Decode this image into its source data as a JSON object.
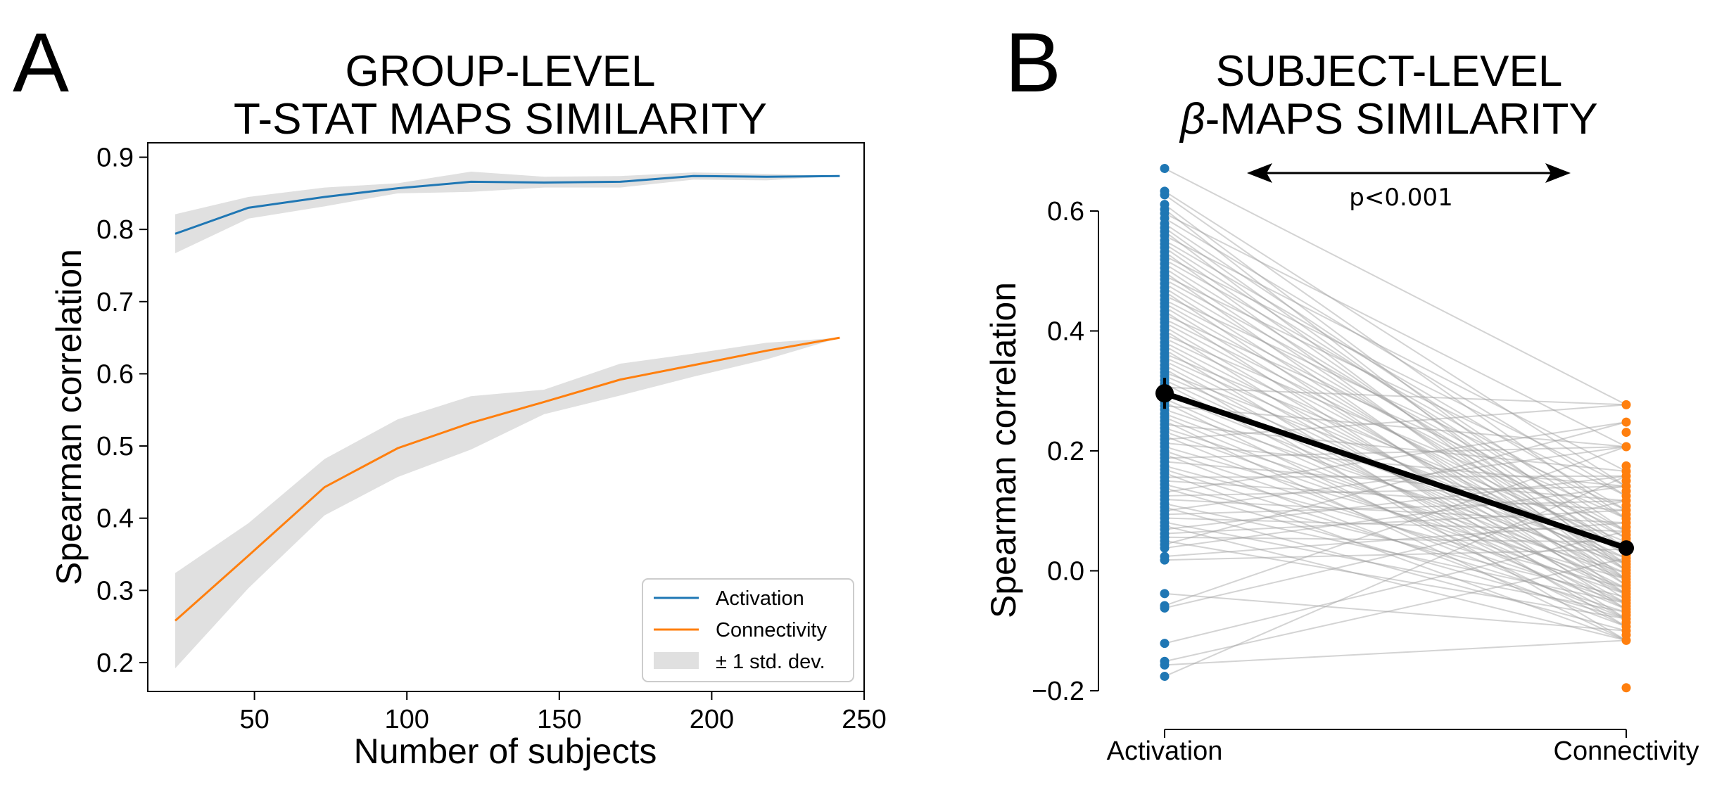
{
  "figure": {
    "panel_a_letter": "A",
    "panel_b_letter": "B",
    "panel_a_title": [
      "GROUP-LEVEL",
      "T-STAT MAPS SIMILARITY"
    ],
    "panel_b_title_line1": "SUBJECT-LEVEL",
    "panel_b_title_beta": "β",
    "panel_b_title_rest": "-MAPS SIMILARITY"
  },
  "colors": {
    "activation": "#1f77b4",
    "connectivity": "#ff7f0e",
    "band": "#e0e0e0",
    "pair_lines": "#9e9e9e",
    "mean": "#000000"
  },
  "chart_data": [
    {
      "type": "line",
      "title": "GROUP-LEVEL T-STAT MAPS SIMILARITY",
      "xlabel": "Number of subjects",
      "ylabel": "Spearman correlation",
      "xlim": [
        15,
        250
      ],
      "ylim": [
        0.16,
        0.92
      ],
      "xticks": [
        50,
        100,
        150,
        200,
        250
      ],
      "yticks": [
        0.2,
        0.3,
        0.4,
        0.5,
        0.6,
        0.7,
        0.8,
        0.9
      ],
      "grid": false,
      "legend_position": "lower-right",
      "x": [
        24,
        48,
        73,
        97,
        121,
        145,
        170,
        194,
        218,
        242
      ],
      "series": [
        {
          "name": "Activation",
          "values": [
            0.794,
            0.83,
            0.845,
            0.857,
            0.866,
            0.865,
            0.866,
            0.874,
            0.873,
            0.874
          ],
          "lower": [
            0.767,
            0.815,
            0.832,
            0.85,
            0.852,
            0.858,
            0.858,
            0.869,
            0.868,
            0.874
          ],
          "upper": [
            0.821,
            0.845,
            0.858,
            0.864,
            0.88,
            0.873,
            0.874,
            0.879,
            0.877,
            0.874
          ]
        },
        {
          "name": "Connectivity",
          "values": [
            0.258,
            0.348,
            0.443,
            0.497,
            0.532,
            0.561,
            0.592,
            0.612,
            0.632,
            0.65
          ],
          "lower": [
            0.192,
            0.303,
            0.404,
            0.457,
            0.495,
            0.544,
            0.57,
            0.596,
            0.62,
            0.65
          ],
          "upper": [
            0.324,
            0.393,
            0.482,
            0.537,
            0.569,
            0.578,
            0.614,
            0.628,
            0.643,
            0.65
          ]
        }
      ],
      "band_label": "± 1 std. dev."
    },
    {
      "type": "scatter",
      "title": "SUBJECT-LEVEL β-MAPS SIMILARITY",
      "xlabel": "",
      "ylabel": "Spearman correlation",
      "categories": [
        "Activation",
        "Connectivity"
      ],
      "ylim": [
        -0.2,
        0.6
      ],
      "yticks": [
        -0.2,
        0.0,
        0.2,
        0.4,
        0.6
      ],
      "ytick_labels": [
        "−0.2",
        "0.0",
        "0.2",
        "0.4",
        "0.6"
      ],
      "grid": false,
      "annotation": "p<0.001",
      "series": [
        {
          "name": "Activation",
          "values": [
            0.671,
            0.633,
            0.627,
            0.611,
            0.603,
            0.596,
            0.588,
            0.579,
            0.572,
            0.566,
            0.559,
            0.551,
            0.545,
            0.539,
            0.532,
            0.525,
            0.519,
            0.512,
            0.505,
            0.498,
            0.492,
            0.486,
            0.479,
            0.472,
            0.466,
            0.459,
            0.452,
            0.446,
            0.44,
            0.433,
            0.427,
            0.42,
            0.414,
            0.407,
            0.401,
            0.394,
            0.388,
            0.381,
            0.375,
            0.369,
            0.362,
            0.356,
            0.35,
            0.343,
            0.337,
            0.331,
            0.325,
            0.318,
            0.312,
            0.306,
            0.3,
            0.294,
            0.287,
            0.281,
            0.275,
            0.269,
            0.262,
            0.256,
            0.25,
            0.244,
            0.238,
            0.232,
            0.225,
            0.219,
            0.213,
            0.207,
            0.2,
            0.194,
            0.188,
            0.182,
            0.175,
            0.169,
            0.163,
            0.156,
            0.15,
            0.144,
            0.138,
            0.131,
            0.125,
            0.119,
            0.112,
            0.106,
            0.1,
            0.094,
            0.088,
            0.081,
            0.075,
            0.069,
            0.062,
            0.056,
            0.05,
            0.044,
            0.038,
            0.024,
            0.018,
            -0.038,
            -0.058,
            -0.062,
            -0.121,
            -0.151,
            -0.157,
            -0.176
          ]
        },
        {
          "name": "Connectivity",
          "values": [
            0.277,
            0.248,
            0.231,
            0.207,
            0.175,
            0.166,
            0.158,
            0.15,
            0.141,
            0.133,
            0.125,
            0.117,
            0.109,
            0.101,
            0.094,
            0.087,
            0.08,
            0.073,
            0.066,
            0.06,
            0.054,
            0.048,
            0.042,
            0.036,
            0.031,
            0.026,
            0.021,
            0.016,
            0.011,
            0.006,
            0.001,
            -0.004,
            -0.009,
            -0.014,
            -0.019,
            -0.024,
            -0.029,
            -0.034,
            -0.039,
            -0.044,
            -0.049,
            -0.054,
            -0.059,
            -0.064,
            -0.069,
            -0.074,
            -0.08,
            -0.086,
            -0.093,
            -0.1,
            -0.107,
            -0.116,
            -0.195
          ]
        }
      ],
      "means": [
        0.296,
        0.038
      ]
    }
  ]
}
